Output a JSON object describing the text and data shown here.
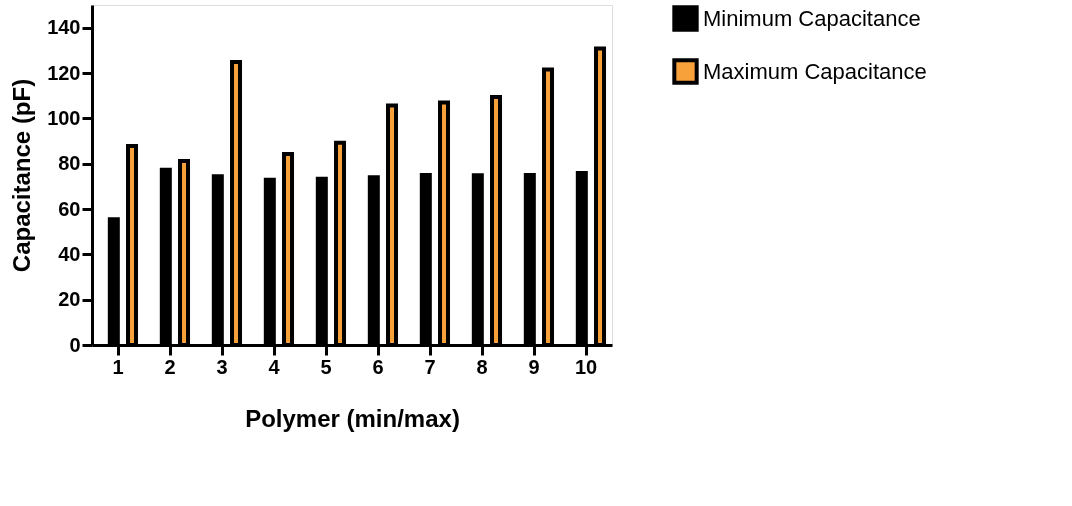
{
  "chart_data": {
    "type": "bar",
    "xlabel": "Polymer (min/max)",
    "ylabel": "Capacitance (pF)",
    "categories": [
      "1",
      "2",
      "3",
      "4",
      "5",
      "6",
      "7",
      "8",
      "9",
      "10"
    ],
    "series": [
      {
        "name": "Minimum Capacitance",
        "color": "#000000",
        "values": [
          55.5,
          77.3,
          74.4,
          72.9,
          73.3,
          74.0,
          75.0,
          74.9,
          75.0,
          75.9
        ]
      },
      {
        "name": "Maximum Capacitance",
        "color": "#f7a13a",
        "values": [
          87.8,
          81.2,
          124.8,
          84.3,
          89.2,
          105.7,
          107.0,
          109.4,
          121.5,
          130.8
        ]
      }
    ],
    "ylim": [
      0,
      150
    ],
    "yticks": [
      0,
      20,
      40,
      60,
      80,
      100,
      120,
      140
    ],
    "grid": false,
    "legend": "top right"
  }
}
